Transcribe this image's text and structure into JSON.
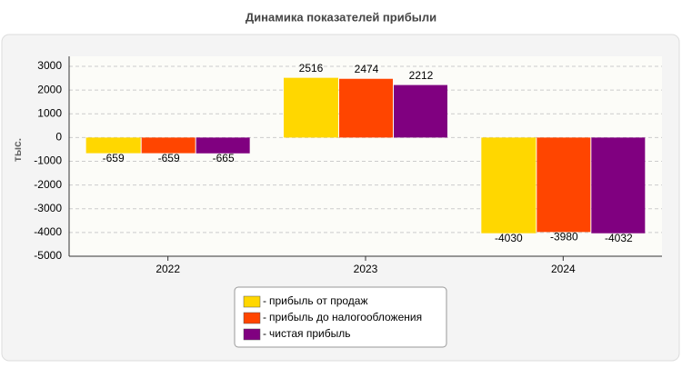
{
  "chart_data": {
    "type": "bar",
    "title": "Динамика показателей прибыли",
    "y_label": "тыс.",
    "categories": [
      "2022",
      "2023",
      "2024"
    ],
    "series": [
      {
        "name": "прибыль от продаж",
        "color": "#FFD700",
        "values": [
          -659,
          2516,
          -4030
        ]
      },
      {
        "name": "прибыль до налогообложения",
        "color": "#FF4500",
        "values": [
          -659,
          2474,
          -3980
        ]
      },
      {
        "name": "чистая прибыль",
        "color": "#800080",
        "values": [
          -665,
          2212,
          -4032
        ]
      }
    ],
    "ylim": [
      -5000,
      3000
    ],
    "yticks": [
      -5000,
      -4000,
      -3000,
      -2000,
      -1000,
      0,
      1000,
      2000,
      3000
    ],
    "grid": true,
    "legend": "bottom"
  }
}
